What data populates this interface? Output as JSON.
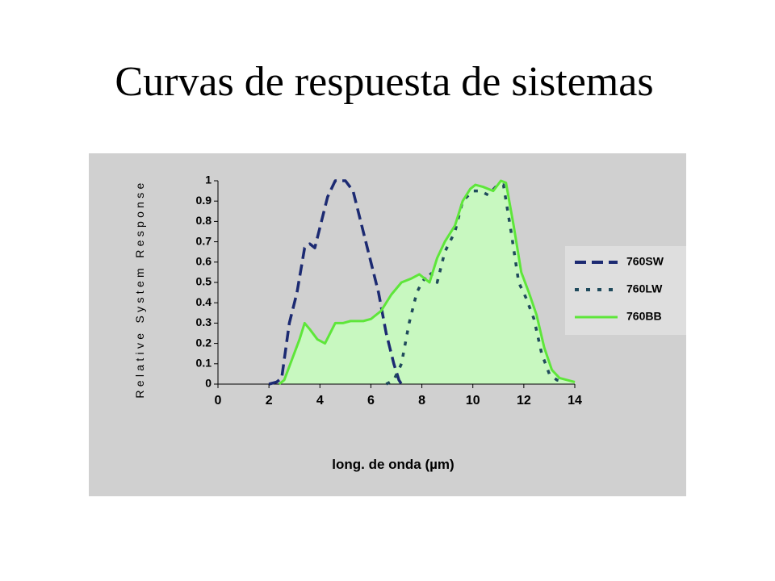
{
  "chart_data": {
    "type": "line",
    "title": "Curvas de respuesta de sistemas",
    "x_label": "long. de onda (µm)",
    "y_label": "Relative System Response",
    "xlim": [
      0,
      14
    ],
    "xticks": [
      0,
      2,
      4,
      6,
      8,
      10,
      12,
      14
    ],
    "ylim": [
      0,
      1
    ],
    "yticks": [
      0,
      0.1,
      0.2,
      0.3,
      0.4,
      0.5,
      0.6,
      0.7,
      0.8,
      0.9,
      1
    ],
    "series": [
      {
        "name": "760SW",
        "color": "#1c2a72",
        "dash": "dashed",
        "x": [
          2,
          2.3,
          2.5,
          2.8,
          3.1,
          3.4,
          3.6,
          3.8,
          4.1,
          4.3,
          4.6,
          5.0,
          5.3,
          5.6,
          6.0,
          6.3,
          6.6,
          6.9,
          7.1,
          7.2
        ],
        "values": [
          0,
          0.01,
          0.03,
          0.3,
          0.45,
          0.67,
          0.69,
          0.67,
          0.82,
          0.92,
          1.0,
          1.0,
          0.95,
          0.8,
          0.6,
          0.45,
          0.25,
          0.1,
          0.02,
          0
        ]
      },
      {
        "name": "760LW",
        "color": "#1f4a5c",
        "dash": "dotted",
        "x": [
          6.6,
          6.9,
          7.2,
          7.5,
          7.8,
          8.0,
          8.3,
          8.6,
          8.9,
          9.3,
          9.6,
          10.0,
          10.3,
          10.6,
          10.9,
          11.2,
          11.5,
          11.8,
          12.1,
          12.4,
          12.7,
          13.0,
          13.3,
          13.6
        ],
        "values": [
          0,
          0.02,
          0.1,
          0.3,
          0.45,
          0.5,
          0.55,
          0.5,
          0.65,
          0.75,
          0.9,
          0.95,
          0.95,
          0.93,
          0.97,
          0.98,
          0.75,
          0.5,
          0.42,
          0.32,
          0.15,
          0.05,
          0.02,
          0.01
        ]
      },
      {
        "name": "760BB",
        "color": "#5ee63a",
        "dash": "solid",
        "fill_color": "#c8f8c0",
        "x": [
          2.4,
          2.6,
          2.9,
          3.2,
          3.4,
          3.6,
          3.9,
          4.2,
          4.6,
          4.9,
          5.2,
          5.7,
          6.0,
          6.4,
          6.8,
          7.2,
          7.6,
          7.9,
          8.3,
          8.6,
          8.9,
          9.3,
          9.6,
          9.9,
          10.1,
          10.4,
          10.8,
          11.1,
          11.3,
          11.6,
          11.9,
          12.2,
          12.5,
          12.8,
          13.1,
          13.4,
          13.7,
          14
        ],
        "values": [
          0,
          0.02,
          0.12,
          0.22,
          0.3,
          0.27,
          0.22,
          0.2,
          0.3,
          0.3,
          0.31,
          0.31,
          0.32,
          0.36,
          0.44,
          0.5,
          0.52,
          0.54,
          0.5,
          0.62,
          0.7,
          0.78,
          0.9,
          0.96,
          0.98,
          0.97,
          0.95,
          1.0,
          0.99,
          0.78,
          0.55,
          0.45,
          0.34,
          0.18,
          0.07,
          0.03,
          0.02,
          0.01
        ]
      }
    ]
  }
}
